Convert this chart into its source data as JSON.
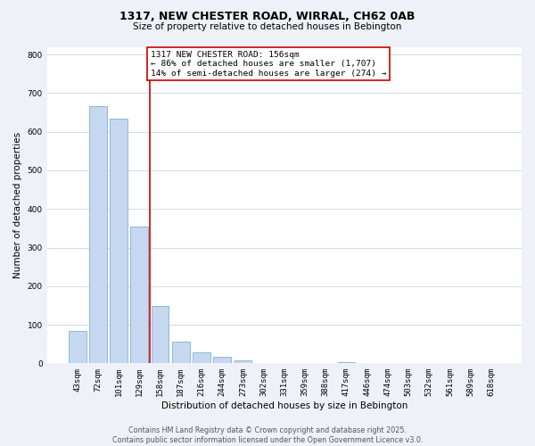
{
  "title_line1": "1317, NEW CHESTER ROAD, WIRRAL, CH62 0AB",
  "title_line2": "Size of property relative to detached houses in Bebington",
  "xlabel": "Distribution of detached houses by size in Bebington",
  "ylabel": "Number of detached properties",
  "bin_labels": [
    "43sqm",
    "72sqm",
    "101sqm",
    "129sqm",
    "158sqm",
    "187sqm",
    "216sqm",
    "244sqm",
    "273sqm",
    "302sqm",
    "331sqm",
    "359sqm",
    "388sqm",
    "417sqm",
    "446sqm",
    "474sqm",
    "503sqm",
    "532sqm",
    "561sqm",
    "589sqm",
    "618sqm"
  ],
  "bar_values": [
    83,
    667,
    635,
    355,
    148,
    57,
    28,
    18,
    7,
    0,
    0,
    0,
    0,
    4,
    0,
    0,
    0,
    0,
    0,
    0,
    0
  ],
  "bar_color": "#c5d8f0",
  "bar_edge_color": "#7fafd4",
  "vline_x": 3.5,
  "vline_color": "#cc0000",
  "annotation_text": "1317 NEW CHESTER ROAD: 156sqm\n← 86% of detached houses are smaller (1,707)\n14% of semi-detached houses are larger (274) →",
  "annotation_box_color": "#ffffff",
  "annotation_box_edge_color": "#cc0000",
  "ylim": [
    0,
    820
  ],
  "yticks": [
    0,
    100,
    200,
    300,
    400,
    500,
    600,
    700,
    800
  ],
  "footer_line1": "Contains HM Land Registry data © Crown copyright and database right 2025.",
  "footer_line2": "Contains public sector information licensed under the Open Government Licence v3.0.",
  "background_color": "#eef2f8",
  "plot_background_color": "#ffffff",
  "grid_color": "#c8d4e8",
  "title1_fontsize": 9,
  "title2_fontsize": 7.5,
  "xlabel_fontsize": 7.5,
  "ylabel_fontsize": 7.5,
  "tick_fontsize": 6.5,
  "annotation_fontsize": 6.8,
  "footer_fontsize": 5.8
}
